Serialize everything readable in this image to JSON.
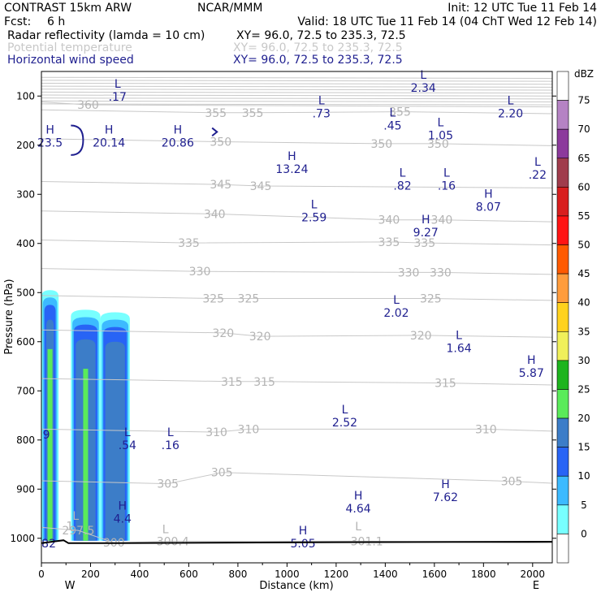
{
  "header": {
    "model": "CONTRAST 15km ARW",
    "org": "NCAR/MMM",
    "init": "Init: 12 UTC Tue 11 Feb 14",
    "fcst_label": "Fcst:",
    "fcst_value": "6 h",
    "valid": "Valid: 18 UTC Tue 11 Feb 14 (04 ChT Wed 12 Feb 14)"
  },
  "fields": [
    {
      "name": "Radar reflectivity (lamda = 10 cm)",
      "xy": "XY=  96.0, 72.5 to 235.3, 72.5",
      "color": "#000000"
    },
    {
      "name": "Potential temperature",
      "xy": "XY=  96.0, 72.5 to 235.3, 72.5",
      "color": "#c8c8c8"
    },
    {
      "name": "Horizontal wind speed",
      "xy": "XY=  96.0, 72.5 to 235.3, 72.5",
      "color": "#1f1f8f"
    }
  ],
  "chart_data": {
    "type": "cross-section",
    "xlabel": "Distance (km)",
    "ylabel": "Pressure (hPa)",
    "xlim": [
      0,
      2080
    ],
    "ylim": [
      1050,
      50
    ],
    "x_ticks": [
      "0",
      "200",
      "400",
      "600",
      "800",
      "1000",
      "1200",
      "1400",
      "1600",
      "1800",
      "2000"
    ],
    "y_ticks": [
      "100",
      "200",
      "300",
      "400",
      "500",
      "600",
      "700",
      "800",
      "900",
      "1000"
    ],
    "end_labels": {
      "left": "W",
      "right": "E"
    },
    "colorbar": {
      "unit": "dBZ",
      "levels": [
        "75",
        "70",
        "65",
        "60",
        "55",
        "50",
        "45",
        "40",
        "35",
        "30",
        "25",
        "20",
        "15",
        "10",
        "5",
        "0"
      ],
      "colors": [
        "#ffffff",
        "#b583c4",
        "#8c3a9c",
        "#a03c4c",
        "#d81e1e",
        "#ff1414",
        "#ff5a00",
        "#ff9c3c",
        "#ffd21e",
        "#f0f05a",
        "#1eb41e",
        "#5aeb5a",
        "#3c7dc8",
        "#2864f5",
        "#3cbaff",
        "#78ffff",
        "#ffffff"
      ]
    },
    "theta_contours": [
      {
        "value": 360,
        "labels": [
          {
            "text": "360",
            "x": 190,
            "p": 118
          }
        ]
      },
      {
        "value": 355,
        "labels": [
          {
            "text": "355",
            "x": 710,
            "p": 134
          },
          {
            "text": "355",
            "x": 860,
            "p": 134
          },
          {
            "text": "355",
            "x": 1460,
            "p": 132
          }
        ]
      },
      {
        "value": 350,
        "labels": [
          {
            "text": "350",
            "x": 730,
            "p": 193
          },
          {
            "text": "350",
            "x": 1385,
            "p": 197
          },
          {
            "text": "350",
            "x": 1615,
            "p": 197
          }
        ]
      },
      {
        "value": 345,
        "labels": [
          {
            "text": "345",
            "x": 730,
            "p": 280
          },
          {
            "text": "345",
            "x": 893,
            "p": 283
          }
        ]
      },
      {
        "value": 340,
        "labels": [
          {
            "text": "340",
            "x": 705,
            "p": 340
          },
          {
            "text": "340",
            "x": 1415,
            "p": 352
          },
          {
            "text": "340",
            "x": 1630,
            "p": 352
          }
        ]
      },
      {
        "value": 335,
        "labels": [
          {
            "text": "335",
            "x": 600,
            "p": 399
          },
          {
            "text": "335",
            "x": 1415,
            "p": 397
          },
          {
            "text": "335",
            "x": 1560,
            "p": 399
          }
        ]
      },
      {
        "value": 330,
        "labels": [
          {
            "text": "330",
            "x": 645,
            "p": 457
          },
          {
            "text": "330",
            "x": 1495,
            "p": 459
          },
          {
            "text": "330",
            "x": 1625,
            "p": 459
          }
        ]
      },
      {
        "value": 325,
        "labels": [
          {
            "text": "325",
            "x": 700,
            "p": 512
          },
          {
            "text": "325",
            "x": 843,
            "p": 512
          },
          {
            "text": "325",
            "x": 1585,
            "p": 512
          }
        ]
      },
      {
        "value": 320,
        "labels": [
          {
            "text": "320",
            "x": 740,
            "p": 582
          },
          {
            "text": "320",
            "x": 890,
            "p": 589
          },
          {
            "text": "320",
            "x": 1545,
            "p": 587
          }
        ]
      },
      {
        "value": 315,
        "labels": [
          {
            "text": "315",
            "x": 775,
            "p": 681
          },
          {
            "text": "315",
            "x": 908,
            "p": 681
          },
          {
            "text": "315",
            "x": 1645,
            "p": 684
          }
        ]
      },
      {
        "value": 310,
        "labels": [
          {
            "text": "310",
            "x": 713,
            "p": 784
          },
          {
            "text": "310",
            "x": 843,
            "p": 778
          },
          {
            "text": "310",
            "x": 1810,
            "p": 778
          }
        ]
      },
      {
        "value": 305,
        "labels": [
          {
            "text": "305",
            "x": 515,
            "p": 889
          },
          {
            "text": "305",
            "x": 735,
            "p": 866
          },
          {
            "text": "305",
            "x": 1915,
            "p": 884
          }
        ]
      },
      {
        "value": 300,
        "labels": [
          {
            "text": "300",
            "x": 295,
            "p": 1009
          },
          {
            "text": "300.4",
            "x": 535,
            "p": 1006
          },
          {
            "text": "301.1",
            "x": 1325,
            "p": 1006
          },
          {
            "text": "1",
            "x": 115,
            "p": 975
          },
          {
            "text": "L",
            "x": 505,
            "p": 981
          },
          {
            "text": "L",
            "x": 1290,
            "p": 976
          },
          {
            "text": "L",
            "x": 140,
            "p": 954
          },
          {
            "text": "297.5",
            "x": 150,
            "p": 984
          }
        ]
      }
    ],
    "wind_extrema": [
      {
        "type": "L",
        "value": "2.34",
        "x": 1555,
        "p": 78
      },
      {
        "type": "L",
        "value": ".17",
        "x": 310,
        "p": 96
      },
      {
        "type": "L",
        "value": ".73",
        "x": 1140,
        "p": 130
      },
      {
        "type": "L",
        "value": "2.20",
        "x": 1910,
        "p": 130
      },
      {
        "type": "L",
        "value": ".45",
        "x": 1430,
        "p": 155
      },
      {
        "type": "L",
        "value": "1.05",
        "x": 1625,
        "p": 175
      },
      {
        "type": "H",
        "value": "23.5",
        "x": 35,
        "p": 190
      },
      {
        "type": "H",
        "value": "20.14",
        "x": 275,
        "p": 190
      },
      {
        "type": "H",
        "value": "20.86",
        "x": 555,
        "p": 190
      },
      {
        "type": "H",
        "value": "13.24",
        "x": 1020,
        "p": 243
      },
      {
        "type": "L",
        "value": ".22",
        "x": 2020,
        "p": 255
      },
      {
        "type": "L",
        "value": ".82",
        "x": 1470,
        "p": 277
      },
      {
        "type": "L",
        "value": ".16",
        "x": 1650,
        "p": 277
      },
      {
        "type": "H",
        "value": "8.07",
        "x": 1820,
        "p": 320
      },
      {
        "type": "L",
        "value": "2.59",
        "x": 1110,
        "p": 342
      },
      {
        "type": "H",
        "value": "9.27",
        "x": 1565,
        "p": 372
      },
      {
        "type": "L",
        "value": "2.02",
        "x": 1445,
        "p": 536
      },
      {
        "type": "L",
        "value": "1.64",
        "x": 1700,
        "p": 608
      },
      {
        "type": "H",
        "value": "5.87",
        "x": 1995,
        "p": 658
      },
      {
        "type": "L",
        "value": "2.52",
        "x": 1235,
        "p": 759
      },
      {
        "type": "L",
        "value": ".54",
        "x": 350,
        "p": 805
      },
      {
        "type": "L",
        "value": ".16",
        "x": 525,
        "p": 805
      },
      {
        "type": "H",
        "value": "7.62",
        "x": 1645,
        "p": 911
      },
      {
        "type": "H",
        "value": "4.64",
        "x": 1290,
        "p": 934
      },
      {
        "type": "H",
        "value": "4.4",
        "x": 330,
        "p": 955
      },
      {
        "type": "H",
        "value": "5.05",
        "x": 1065,
        "p": 1005
      },
      {
        "type": "",
        "value": "9",
        "x": 20,
        "p": 784
      },
      {
        "type": "",
        "value": "82",
        "x": 30,
        "p": 1005
      }
    ],
    "bracket_wind": {
      "x": 1200,
      "p": 100
    },
    "reflectivity_cells": [
      {
        "x0": 0,
        "x1": 70,
        "top_p": 495,
        "peak_dbz": 30
      },
      {
        "x0": 120,
        "x1": 240,
        "top_p": 535,
        "peak_dbz": 30
      },
      {
        "x0": 240,
        "x1": 360,
        "top_p": 540,
        "peak_dbz": 20
      }
    ]
  }
}
